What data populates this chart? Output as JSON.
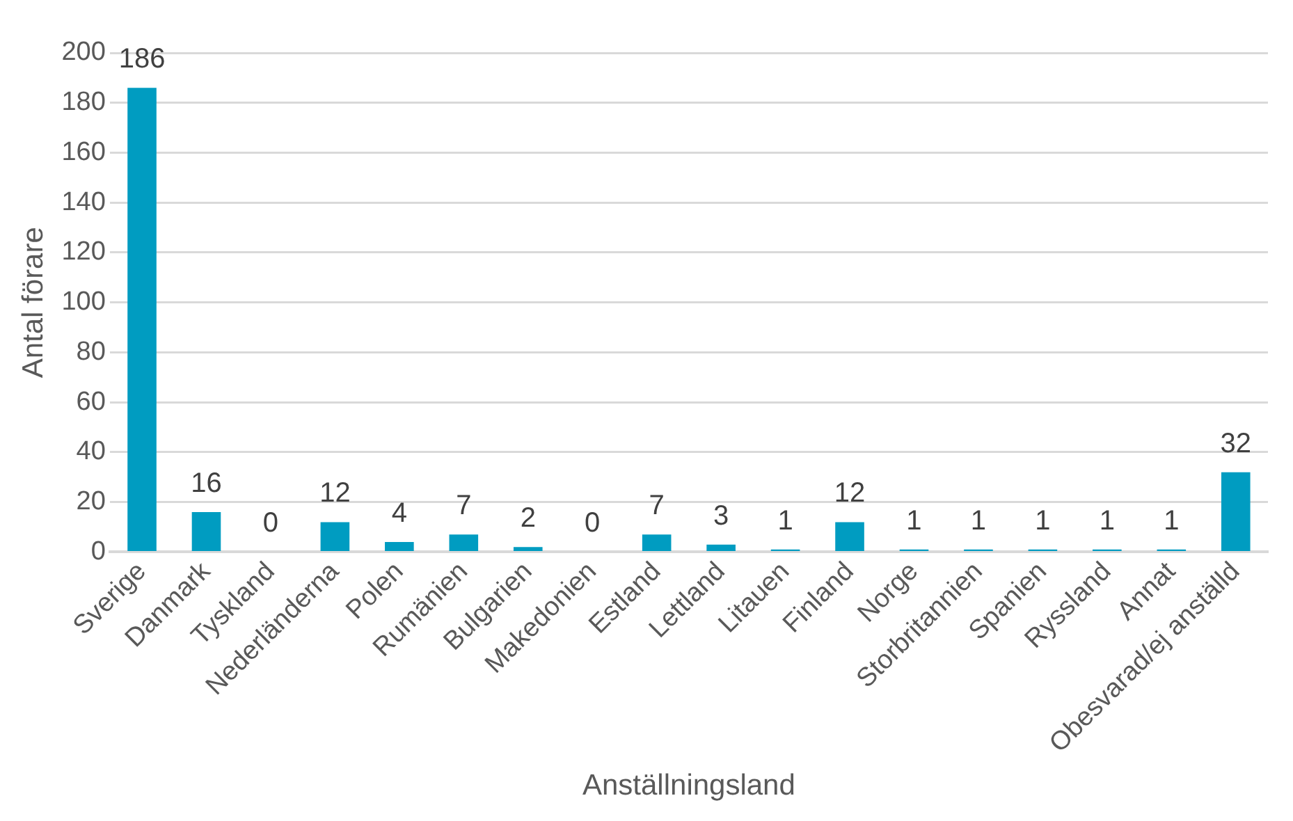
{
  "chart_data": {
    "type": "bar",
    "xlabel": "Anställningsland",
    "ylabel": "Antal förare",
    "categories": [
      "Sverige",
      "Danmark",
      "Tyskland",
      "Nederländerna",
      "Polen",
      "Rumänien",
      "Bulgarien",
      "Makedonien",
      "Estland",
      "Lettland",
      "Litauen",
      "Finland",
      "Norge",
      "Storbritannien",
      "Spanien",
      "Ryssland",
      "Annat",
      "Obesvarad/ej anställd"
    ],
    "values": [
      186,
      16,
      0,
      12,
      4,
      7,
      2,
      0,
      7,
      3,
      1,
      12,
      1,
      1,
      1,
      1,
      1,
      32
    ],
    "color": "#009cc1",
    "ylim": [
      0,
      200
    ],
    "yticks": [
      0,
      20,
      40,
      60,
      80,
      100,
      120,
      140,
      160,
      180,
      200
    ],
    "grid": "y",
    "data_labels": true,
    "legend": false
  }
}
